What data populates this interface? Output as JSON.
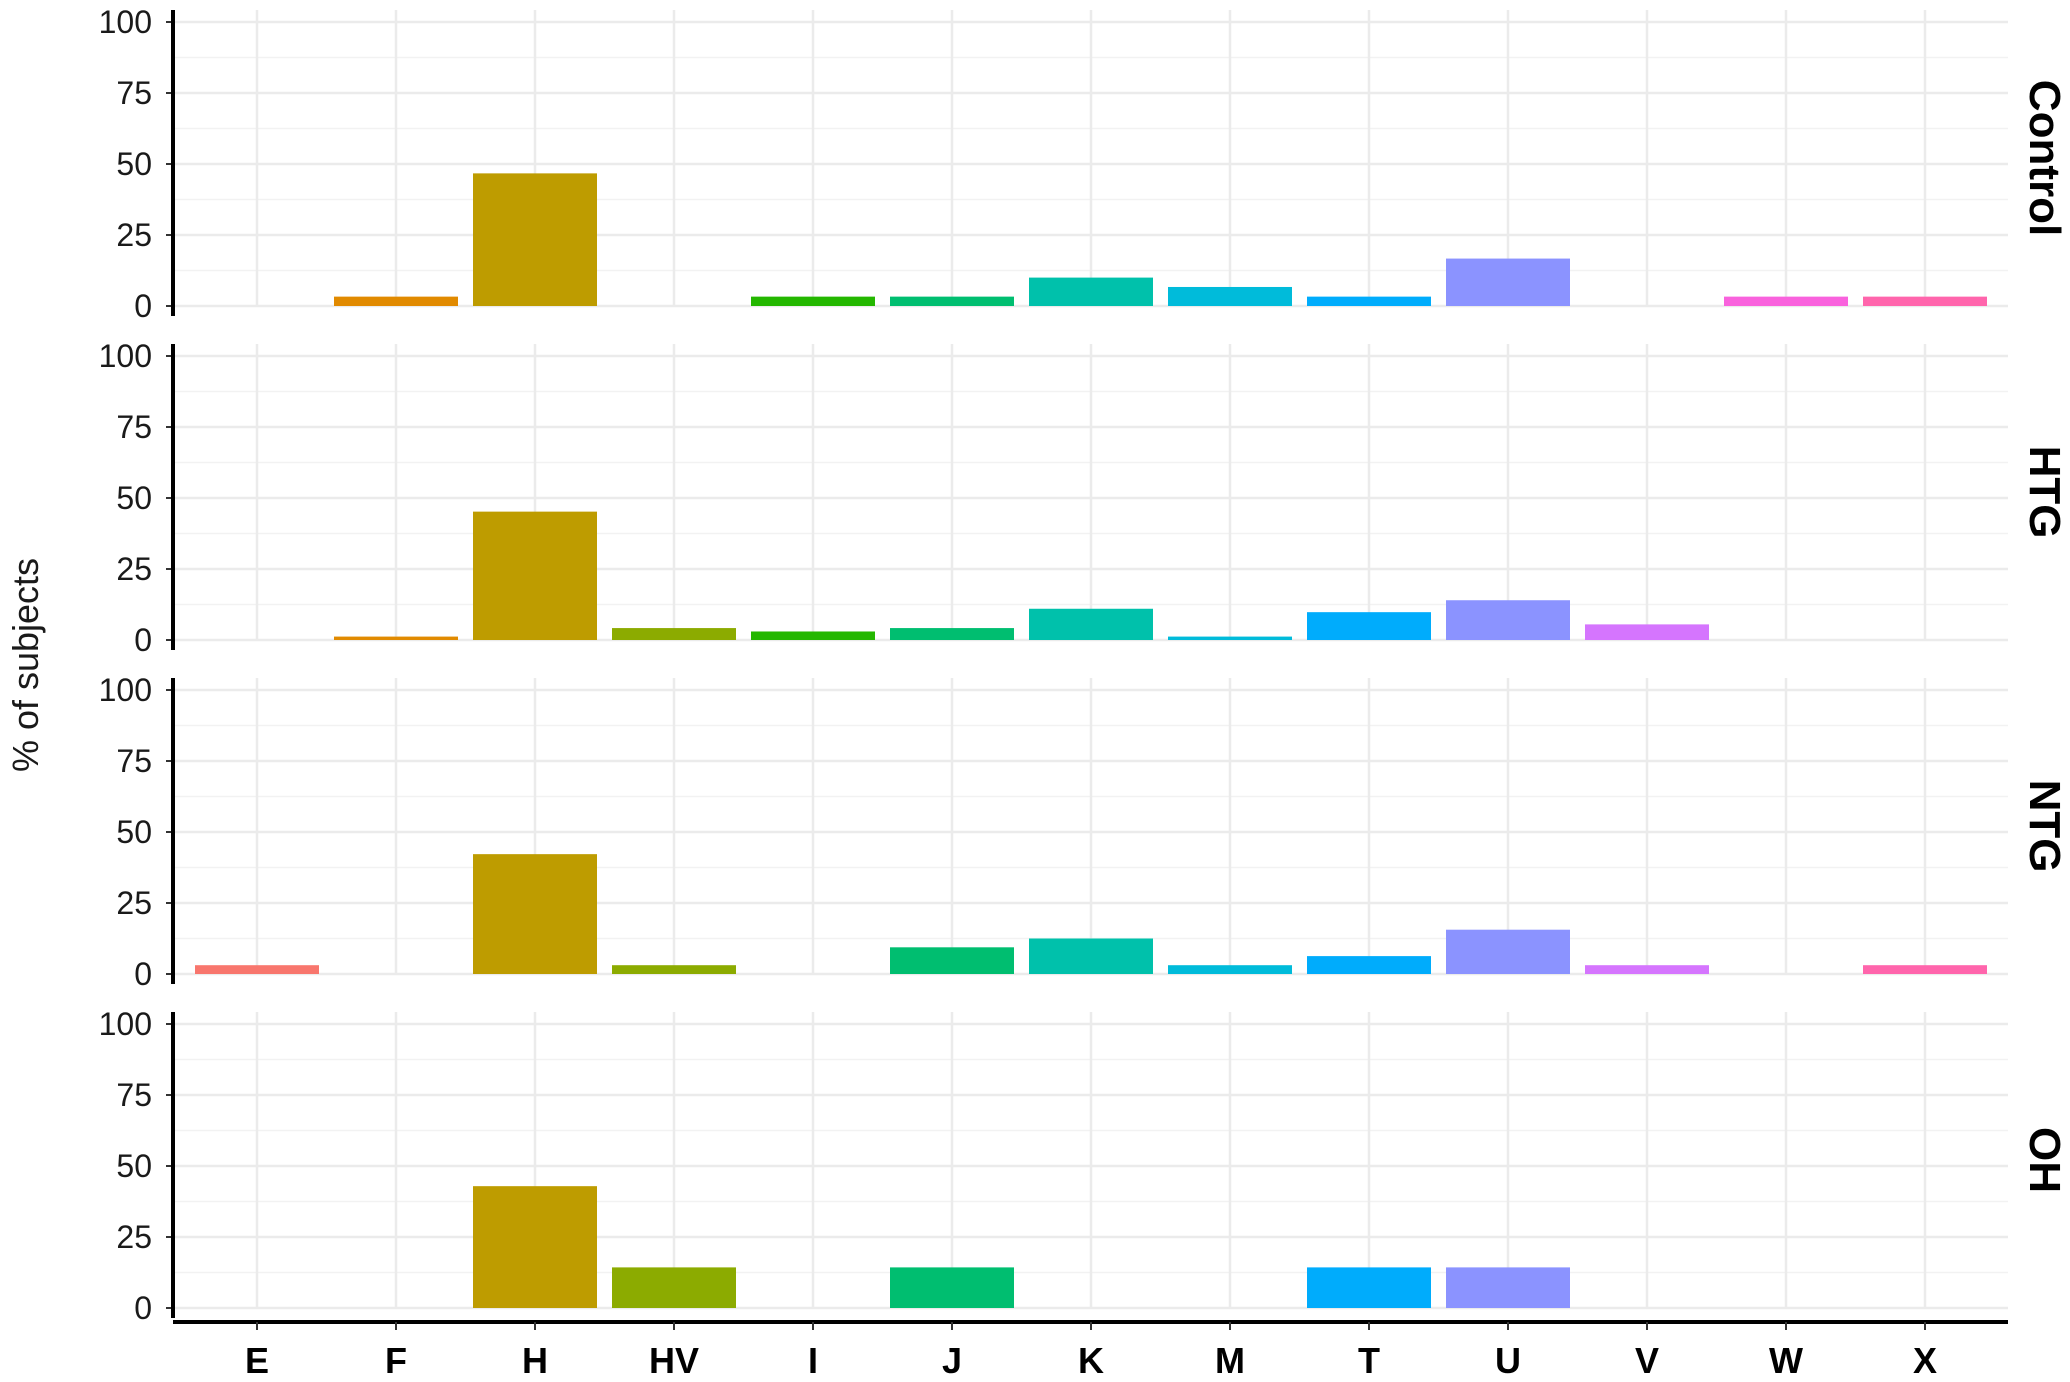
{
  "chart_data": {
    "type": "bar",
    "ylabel": "% of subjects",
    "xlabel": "",
    "ylim": [
      0,
      100
    ],
    "yticks": [
      0,
      25,
      50,
      75,
      100
    ],
    "grid": true,
    "categories": [
      "E",
      "F",
      "H",
      "HV",
      "I",
      "J",
      "K",
      "M",
      "T",
      "U",
      "V",
      "W",
      "X"
    ],
    "colors": [
      "#F8766D",
      "#E18A00",
      "#BE9C00",
      "#8CAB00",
      "#24B700",
      "#00BE70",
      "#00C1AB",
      "#00BBDA",
      "#00ACFC",
      "#8B93FF",
      "#D575FE",
      "#F962DD",
      "#FF65AC"
    ],
    "panels": [
      {
        "name": "Control",
        "values": [
          0,
          3.3,
          46.7,
          0,
          3.3,
          3.3,
          10,
          6.7,
          3.3,
          16.7,
          0,
          3.3,
          3.3
        ]
      },
      {
        "name": "HTG",
        "values": [
          0,
          1.2,
          45.2,
          4.2,
          3.0,
          4.2,
          11.0,
          1.2,
          9.8,
          14.0,
          5.5,
          0,
          0
        ]
      },
      {
        "name": "NTG",
        "values": [
          3.1,
          0,
          42.2,
          3.1,
          0,
          9.4,
          12.5,
          3.1,
          6.3,
          15.6,
          3.1,
          0,
          3.1
        ]
      },
      {
        "name": "OH",
        "values": [
          0,
          0,
          42.9,
          14.3,
          0,
          14.3,
          0,
          0,
          14.3,
          14.3,
          0,
          0,
          0
        ]
      }
    ]
  }
}
